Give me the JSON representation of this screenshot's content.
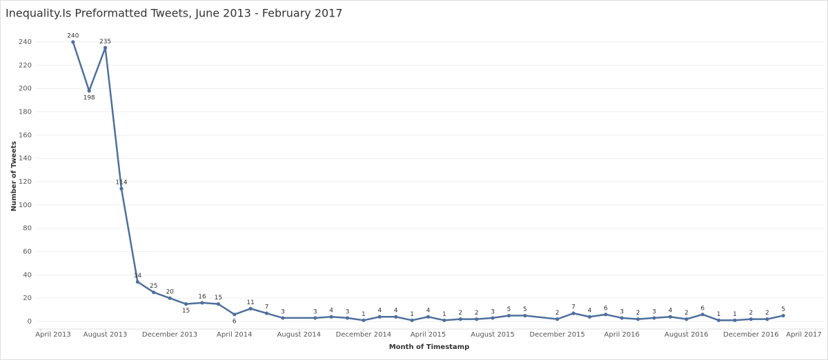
{
  "chart_data": {
    "type": "line",
    "title": "Inequality.Is Preformatted Tweets, June 2013 - February 2017",
    "x_label": "Month of Timestamp",
    "y_label": "Number of Tweets",
    "x": [
      "2013-06",
      "2013-07",
      "2013-08",
      "2013-09",
      "2013-10",
      "2013-11",
      "2013-12",
      "2014-01",
      "2014-02",
      "2014-03",
      "2014-04",
      "2014-05",
      "2014-06",
      "2014-07",
      "2014-09",
      "2014-10",
      "2014-11",
      "2014-12",
      "2015-01",
      "2015-02",
      "2015-03",
      "2015-04",
      "2015-05",
      "2015-06",
      "2015-07",
      "2015-08",
      "2015-09",
      "2015-10",
      "2015-12",
      "2016-01",
      "2016-02",
      "2016-03",
      "2016-04",
      "2016-05",
      "2016-06",
      "2016-07",
      "2016-08",
      "2016-09",
      "2016-10",
      "2016-11",
      "2016-12",
      "2017-01",
      "2017-02"
    ],
    "series": [
      {
        "name": "Number of Tweets",
        "color": "#4e6f9c",
        "values": [
          240,
          198,
          235,
          114,
          34,
          25,
          20,
          15,
          16,
          15,
          6,
          11,
          7,
          3,
          3,
          4,
          3,
          1,
          4,
          4,
          1,
          4,
          1,
          2,
          2,
          3,
          5,
          5,
          2,
          7,
          4,
          6,
          3,
          2,
          3,
          4,
          2,
          6,
          1,
          1,
          2,
          2,
          5
        ]
      }
    ],
    "xlim": [
      "2013-04",
      "2017-04"
    ],
    "xticks": [
      {
        "value": "2013-04",
        "label": "April 2013"
      },
      {
        "value": "2013-08",
        "label": "August 2013"
      },
      {
        "value": "2013-12",
        "label": "December 2013"
      },
      {
        "value": "2014-04",
        "label": "April 2014"
      },
      {
        "value": "2014-08",
        "label": "August 2014"
      },
      {
        "value": "2014-12",
        "label": "December 2014"
      },
      {
        "value": "2015-04",
        "label": "April 2015"
      },
      {
        "value": "2015-08",
        "label": "August 2015"
      },
      {
        "value": "2015-12",
        "label": "December 2015"
      },
      {
        "value": "2016-04",
        "label": "April 2016"
      },
      {
        "value": "2016-08",
        "label": "August 2016"
      },
      {
        "value": "2016-12",
        "label": "December 2016"
      },
      {
        "value": "2017-04",
        "label": "April 2017"
      }
    ],
    "ylim": [
      0,
      250
    ],
    "yticks": [
      0,
      20,
      40,
      60,
      80,
      100,
      120,
      140,
      160,
      180,
      200,
      220,
      240
    ],
    "grid": true
  }
}
